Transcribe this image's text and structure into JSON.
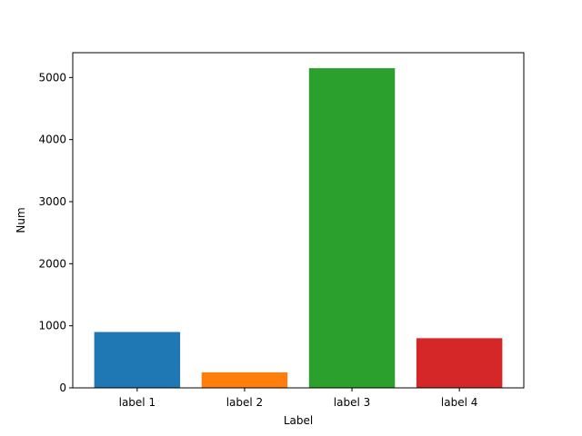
{
  "chart_data": {
    "type": "bar",
    "title": "",
    "xlabel": "Label",
    "ylabel": "Num",
    "categories": [
      "label 1",
      "label 2",
      "label 3",
      "label 4"
    ],
    "values": [
      900,
      250,
      5150,
      800
    ],
    "colors": [
      "#1f77b4",
      "#ff7f0e",
      "#2ca02c",
      "#d62728"
    ],
    "ylim": [
      0,
      5400
    ],
    "yticks": [
      0,
      1000,
      2000,
      3000,
      4000,
      5000
    ],
    "grid": false,
    "legend": "none"
  }
}
